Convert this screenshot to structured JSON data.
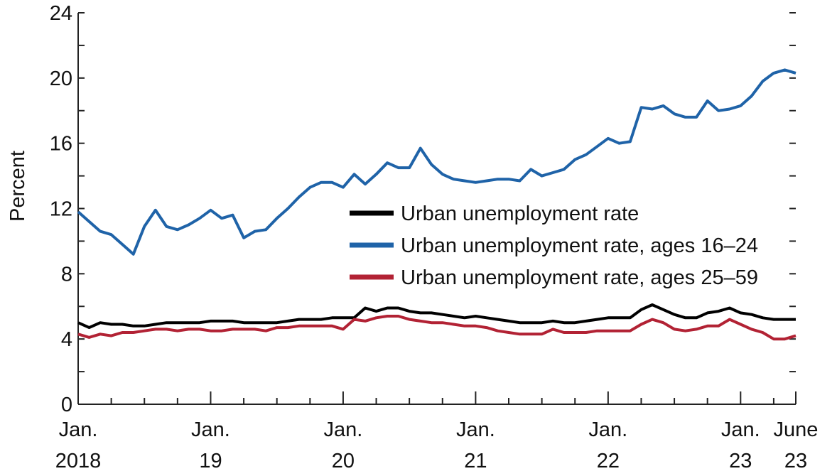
{
  "chart_data": {
    "type": "line",
    "ylabel": "Percent",
    "ylim": [
      0,
      24
    ],
    "y_ticks": [
      0,
      4,
      8,
      12,
      16,
      20,
      24
    ],
    "x_range": [
      "2018-01",
      "2023-06"
    ],
    "x_ticks": [
      {
        "date": "2018-01",
        "line1": "Jan.",
        "line2": "2018"
      },
      {
        "date": "2019-01",
        "line1": "Jan.",
        "line2": "19"
      },
      {
        "date": "2020-01",
        "line1": "Jan.",
        "line2": "20"
      },
      {
        "date": "2021-01",
        "line1": "Jan.",
        "line2": "21"
      },
      {
        "date": "2022-01",
        "line1": "Jan.",
        "line2": "22"
      },
      {
        "date": "2023-01",
        "line1": "Jan.",
        "line2": "23"
      },
      {
        "date": "2023-06",
        "line1": "June",
        "line2": "23"
      }
    ],
    "legend_position": "center-right",
    "grid": false,
    "series": [
      {
        "name": "Urban unemployment rate",
        "color": "#000000",
        "points": [
          [
            "2018-01",
            5.0
          ],
          [
            "2018-02",
            4.7
          ],
          [
            "2018-03",
            5.0
          ],
          [
            "2018-04",
            4.9
          ],
          [
            "2018-05",
            4.9
          ],
          [
            "2018-06",
            4.8
          ],
          [
            "2018-07",
            4.8
          ],
          [
            "2018-08",
            4.9
          ],
          [
            "2018-09",
            5.0
          ],
          [
            "2018-10",
            5.0
          ],
          [
            "2018-11",
            5.0
          ],
          [
            "2018-12",
            5.0
          ],
          [
            "2019-01",
            5.1
          ],
          [
            "2019-02",
            5.1
          ],
          [
            "2019-03",
            5.1
          ],
          [
            "2019-04",
            5.0
          ],
          [
            "2019-05",
            5.0
          ],
          [
            "2019-06",
            5.0
          ],
          [
            "2019-07",
            5.0
          ],
          [
            "2019-08",
            5.1
          ],
          [
            "2019-09",
            5.2
          ],
          [
            "2019-10",
            5.2
          ],
          [
            "2019-11",
            5.2
          ],
          [
            "2019-12",
            5.3
          ],
          [
            "2020-01",
            5.3
          ],
          [
            "2020-02",
            5.3
          ],
          [
            "2020-03",
            5.9
          ],
          [
            "2020-04",
            5.7
          ],
          [
            "2020-05",
            5.9
          ],
          [
            "2020-06",
            5.9
          ],
          [
            "2020-07",
            5.7
          ],
          [
            "2020-08",
            5.6
          ],
          [
            "2020-09",
            5.6
          ],
          [
            "2020-10",
            5.5
          ],
          [
            "2020-11",
            5.4
          ],
          [
            "2020-12",
            5.3
          ],
          [
            "2021-01",
            5.4
          ],
          [
            "2021-02",
            5.3
          ],
          [
            "2021-03",
            5.2
          ],
          [
            "2021-04",
            5.1
          ],
          [
            "2021-05",
            5.0
          ],
          [
            "2021-06",
            5.0
          ],
          [
            "2021-07",
            5.0
          ],
          [
            "2021-08",
            5.1
          ],
          [
            "2021-09",
            5.0
          ],
          [
            "2021-10",
            5.0
          ],
          [
            "2021-11",
            5.1
          ],
          [
            "2021-12",
            5.2
          ],
          [
            "2022-01",
            5.3
          ],
          [
            "2022-02",
            5.3
          ],
          [
            "2022-03",
            5.3
          ],
          [
            "2022-04",
            5.8
          ],
          [
            "2022-05",
            6.1
          ],
          [
            "2022-06",
            5.8
          ],
          [
            "2022-07",
            5.5
          ],
          [
            "2022-08",
            5.3
          ],
          [
            "2022-09",
            5.3
          ],
          [
            "2022-10",
            5.6
          ],
          [
            "2022-11",
            5.7
          ],
          [
            "2022-12",
            5.9
          ],
          [
            "2023-01",
            5.6
          ],
          [
            "2023-02",
            5.5
          ],
          [
            "2023-03",
            5.3
          ],
          [
            "2023-04",
            5.2
          ],
          [
            "2023-05",
            5.2
          ],
          [
            "2023-06",
            5.2
          ]
        ]
      },
      {
        "name": "Urban unemployment rate, ages 16–24",
        "color": "#1f63a8",
        "points": [
          [
            "2018-01",
            11.8
          ],
          [
            "2018-02",
            11.2
          ],
          [
            "2018-03",
            10.6
          ],
          [
            "2018-04",
            10.4
          ],
          [
            "2018-05",
            9.8
          ],
          [
            "2018-06",
            9.2
          ],
          [
            "2018-07",
            10.9
          ],
          [
            "2018-08",
            11.9
          ],
          [
            "2018-09",
            10.9
          ],
          [
            "2018-10",
            10.7
          ],
          [
            "2018-11",
            11.0
          ],
          [
            "2018-12",
            11.4
          ],
          [
            "2019-01",
            11.9
          ],
          [
            "2019-02",
            11.4
          ],
          [
            "2019-03",
            11.6
          ],
          [
            "2019-04",
            10.2
          ],
          [
            "2019-05",
            10.6
          ],
          [
            "2019-06",
            10.7
          ],
          [
            "2019-07",
            11.4
          ],
          [
            "2019-08",
            12.0
          ],
          [
            "2019-09",
            12.7
          ],
          [
            "2019-10",
            13.3
          ],
          [
            "2019-11",
            13.6
          ],
          [
            "2019-12",
            13.6
          ],
          [
            "2020-01",
            13.3
          ],
          [
            "2020-02",
            14.1
          ],
          [
            "2020-03",
            13.5
          ],
          [
            "2020-04",
            14.1
          ],
          [
            "2020-05",
            14.8
          ],
          [
            "2020-06",
            14.5
          ],
          [
            "2020-07",
            14.5
          ],
          [
            "2020-08",
            15.7
          ],
          [
            "2020-09",
            14.7
          ],
          [
            "2020-10",
            14.1
          ],
          [
            "2020-11",
            13.8
          ],
          [
            "2020-12",
            13.7
          ],
          [
            "2021-01",
            13.6
          ],
          [
            "2021-02",
            13.7
          ],
          [
            "2021-03",
            13.8
          ],
          [
            "2021-04",
            13.8
          ],
          [
            "2021-05",
            13.7
          ],
          [
            "2021-06",
            14.4
          ],
          [
            "2021-07",
            14.0
          ],
          [
            "2021-08",
            14.2
          ],
          [
            "2021-09",
            14.4
          ],
          [
            "2021-10",
            15.0
          ],
          [
            "2021-11",
            15.3
          ],
          [
            "2021-12",
            15.8
          ],
          [
            "2022-01",
            16.3
          ],
          [
            "2022-02",
            16.0
          ],
          [
            "2022-03",
            16.1
          ],
          [
            "2022-04",
            18.2
          ],
          [
            "2022-05",
            18.1
          ],
          [
            "2022-06",
            18.3
          ],
          [
            "2022-07",
            17.8
          ],
          [
            "2022-08",
            17.6
          ],
          [
            "2022-09",
            17.6
          ],
          [
            "2022-10",
            18.6
          ],
          [
            "2022-11",
            18.0
          ],
          [
            "2022-12",
            18.1
          ],
          [
            "2023-01",
            18.3
          ],
          [
            "2023-02",
            18.9
          ],
          [
            "2023-03",
            19.8
          ],
          [
            "2023-04",
            20.3
          ],
          [
            "2023-05",
            20.5
          ],
          [
            "2023-06",
            20.3
          ]
        ]
      },
      {
        "name": "Urban unemployment rate, ages 25–59",
        "color": "#b22234",
        "points": [
          [
            "2018-01",
            4.3
          ],
          [
            "2018-02",
            4.1
          ],
          [
            "2018-03",
            4.3
          ],
          [
            "2018-04",
            4.2
          ],
          [
            "2018-05",
            4.4
          ],
          [
            "2018-06",
            4.4
          ],
          [
            "2018-07",
            4.5
          ],
          [
            "2018-08",
            4.6
          ],
          [
            "2018-09",
            4.6
          ],
          [
            "2018-10",
            4.5
          ],
          [
            "2018-11",
            4.6
          ],
          [
            "2018-12",
            4.6
          ],
          [
            "2019-01",
            4.5
          ],
          [
            "2019-02",
            4.5
          ],
          [
            "2019-03",
            4.6
          ],
          [
            "2019-04",
            4.6
          ],
          [
            "2019-05",
            4.6
          ],
          [
            "2019-06",
            4.5
          ],
          [
            "2019-07",
            4.7
          ],
          [
            "2019-08",
            4.7
          ],
          [
            "2019-09",
            4.8
          ],
          [
            "2019-10",
            4.8
          ],
          [
            "2019-11",
            4.8
          ],
          [
            "2019-12",
            4.8
          ],
          [
            "2020-01",
            4.6
          ],
          [
            "2020-02",
            5.2
          ],
          [
            "2020-03",
            5.1
          ],
          [
            "2020-04",
            5.3
          ],
          [
            "2020-05",
            5.4
          ],
          [
            "2020-06",
            5.4
          ],
          [
            "2020-07",
            5.2
          ],
          [
            "2020-08",
            5.1
          ],
          [
            "2020-09",
            5.0
          ],
          [
            "2020-10",
            5.0
          ],
          [
            "2020-11",
            4.9
          ],
          [
            "2020-12",
            4.8
          ],
          [
            "2021-01",
            4.8
          ],
          [
            "2021-02",
            4.7
          ],
          [
            "2021-03",
            4.5
          ],
          [
            "2021-04",
            4.4
          ],
          [
            "2021-05",
            4.3
          ],
          [
            "2021-06",
            4.3
          ],
          [
            "2021-07",
            4.3
          ],
          [
            "2021-08",
            4.6
          ],
          [
            "2021-09",
            4.4
          ],
          [
            "2021-10",
            4.4
          ],
          [
            "2021-11",
            4.4
          ],
          [
            "2021-12",
            4.5
          ],
          [
            "2022-01",
            4.5
          ],
          [
            "2022-02",
            4.5
          ],
          [
            "2022-03",
            4.5
          ],
          [
            "2022-04",
            4.9
          ],
          [
            "2022-05",
            5.2
          ],
          [
            "2022-06",
            5.0
          ],
          [
            "2022-07",
            4.6
          ],
          [
            "2022-08",
            4.5
          ],
          [
            "2022-09",
            4.6
          ],
          [
            "2022-10",
            4.8
          ],
          [
            "2022-11",
            4.8
          ],
          [
            "2022-12",
            5.2
          ],
          [
            "2023-01",
            4.9
          ],
          [
            "2023-02",
            4.6
          ],
          [
            "2023-03",
            4.4
          ],
          [
            "2023-04",
            4.0
          ],
          [
            "2023-05",
            4.0
          ],
          [
            "2023-06",
            4.2
          ]
        ]
      }
    ]
  }
}
